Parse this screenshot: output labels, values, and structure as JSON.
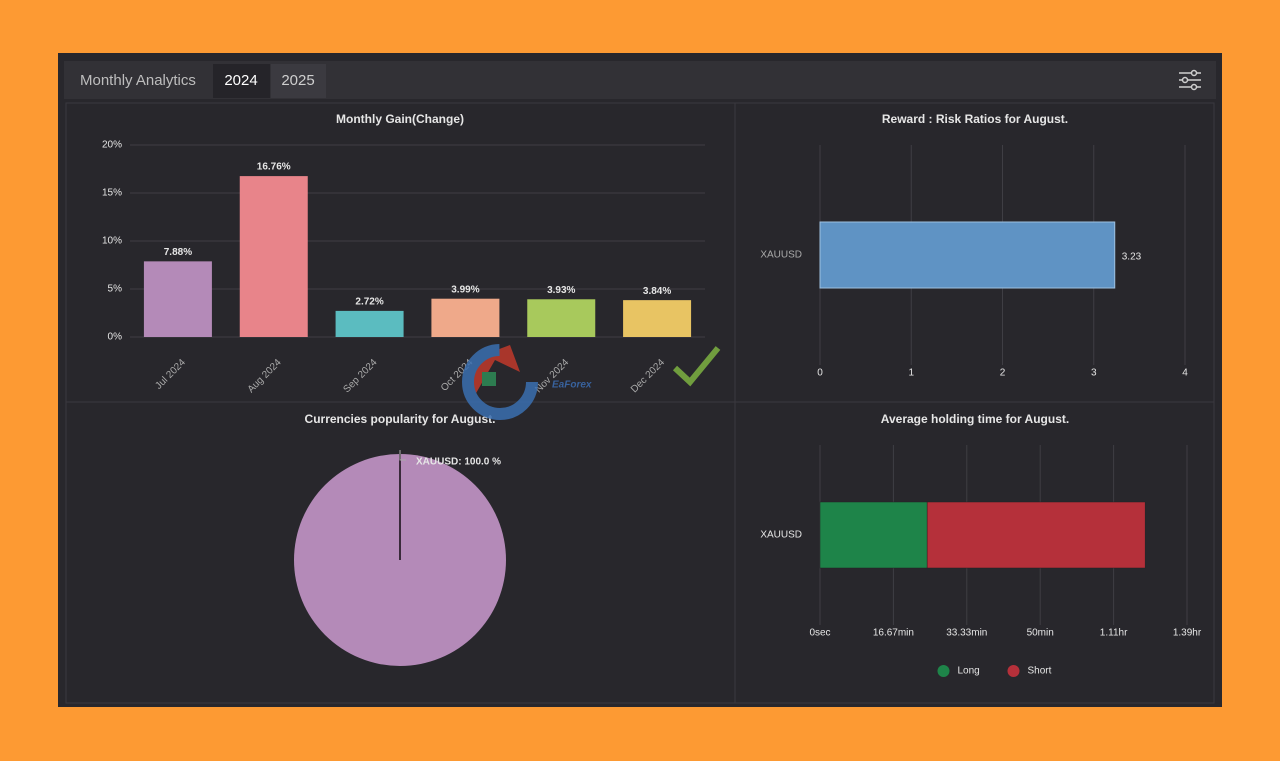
{
  "header": {
    "title": "Monthly Analytics",
    "tabs": [
      "2024",
      "2025"
    ]
  },
  "watermark": "EaForex",
  "chart_data": [
    {
      "type": "bar",
      "title": "Monthly Gain(Change)",
      "categories": [
        "Jul 2024",
        "Aug 2024",
        "Sep 2024",
        "Oct 2024",
        "Nov 2024",
        "Dec 2024"
      ],
      "values": [
        7.88,
        16.76,
        2.72,
        3.99,
        3.93,
        3.84
      ],
      "value_labels": [
        "7.88%",
        "16.76%",
        "2.72%",
        "3.99%",
        "3.93%",
        "3.84%"
      ],
      "colors": [
        "#b48ab8",
        "#e8848a",
        "#5bbcc0",
        "#efa98a",
        "#a8c95c",
        "#e8c463"
      ],
      "ylim": [
        0,
        20
      ],
      "yticks": [
        {
          "value": 0,
          "label": "0%"
        },
        {
          "value": 5,
          "label": "5%"
        },
        {
          "value": 10,
          "label": "10%"
        },
        {
          "value": 15,
          "label": "15%"
        },
        {
          "value": 20,
          "label": "20%"
        }
      ],
      "grid": true
    },
    {
      "type": "hbar",
      "title": "Reward : Risk Ratios for August.",
      "categories": [
        "XAUUSD"
      ],
      "values": [
        3.23
      ],
      "color": "#5f93c4",
      "xlim": [
        0,
        4
      ],
      "xticks": [
        0,
        1,
        2,
        3,
        4
      ],
      "grid": true
    },
    {
      "type": "pie",
      "title": "Currencies popularity for August.",
      "categories": [
        "XAUUSD"
      ],
      "values": [
        100
      ],
      "value_labels": [
        "XAUUSD: 100.0 %"
      ],
      "colors": [
        "#b48ab8"
      ]
    },
    {
      "type": "stackedbar",
      "title": "Average holding time for August.",
      "categories": [
        "XAUUSD"
      ],
      "series": [
        {
          "name": "Long",
          "color": "#1e8449",
          "values": [
            1460
          ]
        },
        {
          "name": "Short",
          "color": "#b5303a",
          "values": [
            2970
          ]
        }
      ],
      "xlim": [
        0,
        5000
      ],
      "xticks": [
        {
          "value": 0,
          "label": "0sec"
        },
        {
          "value": 1000,
          "label": "16.67min"
        },
        {
          "value": 2000,
          "label": "33.33min"
        },
        {
          "value": 3000,
          "label": "50min"
        },
        {
          "value": 4000,
          "label": "1.11hr"
        },
        {
          "value": 5000,
          "label": "1.39hr"
        }
      ],
      "grid": true,
      "legend": "bottom"
    }
  ]
}
